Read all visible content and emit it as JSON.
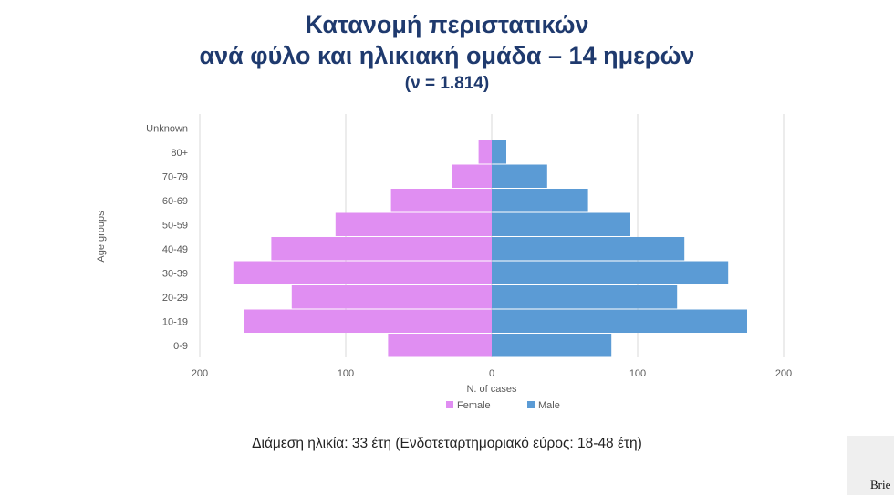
{
  "title": {
    "line1": "Κατανομή περιστατικών",
    "line2": "ανά φύλο και ηλικιακή ομάδα – 14 ημερών",
    "line3": "(ν = 1.814)"
  },
  "chart_data": {
    "type": "bar",
    "orientation": "horizontal",
    "ylabel": "Age groups",
    "xlabel": "N. of cases",
    "categories": [
      "0-9",
      "10-19",
      "20-29",
      "30-39",
      "40-49",
      "50-59",
      "60-69",
      "70-79",
      "80+",
      "Unknown"
    ],
    "series": [
      {
        "name": "Female",
        "color": "#e08ef2",
        "values": [
          71,
          170,
          137,
          177,
          151,
          107,
          69,
          27,
          9,
          0
        ]
      },
      {
        "name": "Male",
        "color": "#5b9bd5",
        "values": [
          82,
          175,
          127,
          162,
          132,
          95,
          66,
          38,
          10,
          0
        ]
      }
    ],
    "xlim": [
      -200,
      200
    ],
    "xticks": [
      -200,
      -100,
      0,
      100,
      200
    ],
    "xtick_labels": [
      "200",
      "100",
      "0",
      "100",
      "200"
    ],
    "grid": true,
    "legend": "bottom"
  },
  "footnote": "Διάμεση ηλικία: 33 έτη (Ενδοτεταρτημοριακό εύρος: 18-48 έτη)",
  "corner_text": "Brie"
}
